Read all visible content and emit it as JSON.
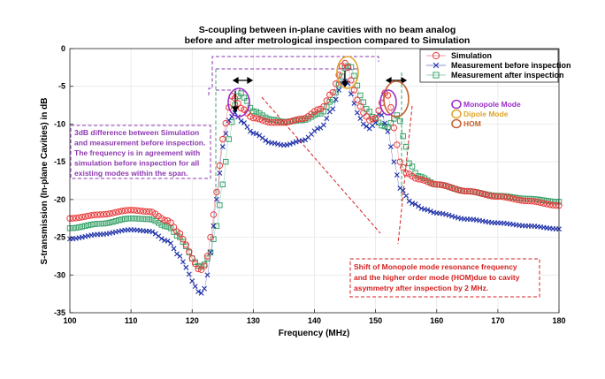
{
  "chart_data": {
    "type": "line",
    "title": [
      "S-coupling between in-plane cavities with no beam analog",
      "before and after metrological inspection compared to Simulation"
    ],
    "xlabel": "Frequency (MHz)",
    "ylabel": "S-transmission (In-plane Cavities) in dB",
    "xlim": [
      100,
      180
    ],
    "ylim": [
      -35,
      0
    ],
    "xticks": [
      100,
      110,
      120,
      130,
      140,
      150,
      160,
      170,
      180
    ],
    "yticks": [
      0,
      -5,
      -10,
      -15,
      -20,
      -25,
      -30,
      -35
    ],
    "grid": true,
    "legend_position": "top-right",
    "series": [
      {
        "name": "Simulation",
        "marker": "circle",
        "color": "#e8393a",
        "x": [
          100,
          105,
          110,
          113,
          116,
          118,
          119,
          120,
          121,
          121.5,
          122,
          122.5,
          123,
          124,
          125,
          126,
          126.6,
          127,
          128,
          130,
          133,
          135,
          138,
          141,
          143,
          144,
          144.8,
          145.5,
          146,
          147,
          148,
          149,
          150,
          151,
          151.6,
          152,
          152.5,
          153,
          154,
          155,
          157,
          160,
          165,
          170,
          175,
          180
        ],
        "y": [
          -22.5,
          -22.0,
          -21.4,
          -21.6,
          -22.8,
          -24.5,
          -26.0,
          -27.8,
          -29.2,
          -29.3,
          -28.8,
          -27.5,
          -25.0,
          -19.0,
          -12.0,
          -7.8,
          -6.2,
          -6.6,
          -7.9,
          -9.2,
          -9.8,
          -9.8,
          -9.3,
          -8.0,
          -5.8,
          -3.5,
          -1.8,
          -2.5,
          -4.2,
          -6.8,
          -8.5,
          -9.5,
          -9.2,
          -7.2,
          -5.8,
          -6.2,
          -7.8,
          -10.5,
          -15.0,
          -16.5,
          -17.3,
          -18.0,
          -18.9,
          -19.6,
          -20.2,
          -20.8
        ]
      },
      {
        "name": "Measurement before inspection",
        "marker": "x",
        "color": "#1d2fa8",
        "x": [
          100,
          105,
          110,
          113,
          116,
          118,
          119,
          120,
          121,
          121.5,
          122,
          122.5,
          123,
          124,
          125,
          126,
          127,
          128,
          130,
          133,
          135,
          138,
          141,
          143,
          144,
          144.8,
          145.5,
          146,
          147,
          148,
          149,
          150,
          150.5,
          151,
          152,
          153,
          154,
          156,
          158,
          160,
          165,
          170,
          175,
          180
        ],
        "y": [
          -25.2,
          -24.6,
          -24.0,
          -24.2,
          -25.5,
          -27.5,
          -29.0,
          -30.8,
          -32.2,
          -32.4,
          -31.8,
          -30.0,
          -27.0,
          -20.0,
          -13.0,
          -9.5,
          -8.5,
          -9.6,
          -11.2,
          -12.5,
          -12.8,
          -12.2,
          -10.5,
          -8.0,
          -5.5,
          -4.2,
          -4.6,
          -6.0,
          -8.5,
          -10.0,
          -10.6,
          -9.8,
          -8.7,
          -8.8,
          -11.0,
          -15.0,
          -18.5,
          -20.5,
          -21.3,
          -21.8,
          -22.6,
          -23.1,
          -23.5,
          -23.9
        ]
      },
      {
        "name": "Measurement after inspection",
        "marker": "square",
        "color": "#3aa36b",
        "x": [
          100,
          105,
          110,
          113,
          116,
          118,
          119,
          120,
          121,
          121.5,
          122,
          123,
          124,
          125,
          126,
          127,
          127.8,
          128.5,
          130,
          133,
          135,
          138,
          141,
          143,
          144,
          145,
          145.8,
          146.5,
          147.5,
          148.5,
          150,
          151,
          152,
          153,
          153.6,
          154,
          154.8,
          155.5,
          157,
          160,
          165,
          170,
          175,
          180
        ],
        "y": [
          -23.8,
          -23.2,
          -22.5,
          -22.6,
          -23.6,
          -25.0,
          -26.2,
          -27.8,
          -28.8,
          -28.9,
          -28.6,
          -27.0,
          -23.5,
          -18.0,
          -12.0,
          -7.5,
          -5.8,
          -6.5,
          -8.3,
          -9.4,
          -9.7,
          -9.5,
          -8.6,
          -6.8,
          -4.8,
          -2.6,
          -2.2,
          -3.6,
          -6.2,
          -8.0,
          -9.4,
          -10.2,
          -10.4,
          -9.3,
          -8.8,
          -9.6,
          -12.5,
          -15.2,
          -16.9,
          -18.0,
          -18.9,
          -19.5,
          -19.9,
          -20.3
        ]
      }
    ],
    "mode_legend": [
      {
        "label": "Monopole Mode",
        "color": "#9b2fc9"
      },
      {
        "label": "Dipole Mode",
        "color": "#e0a52a"
      },
      {
        "label": "HOM",
        "color": "#c6602e"
      }
    ],
    "annotations": [
      {
        "id": "3db",
        "color": "#8e3ab0",
        "lines": [
          "3dB difference between Simulation",
          "and measurement before inspection.",
          "The frequency is in agreement with",
          "simulation before inspection for all",
          "existing modes within the span."
        ]
      },
      {
        "id": "shift",
        "color": "#d42020",
        "lines": [
          "Shift of Monopole mode resonance frequency",
          "and the higher order mode (HOM)due to cavity",
          "asymmetry after inspection by 2 MHz."
        ]
      }
    ]
  }
}
